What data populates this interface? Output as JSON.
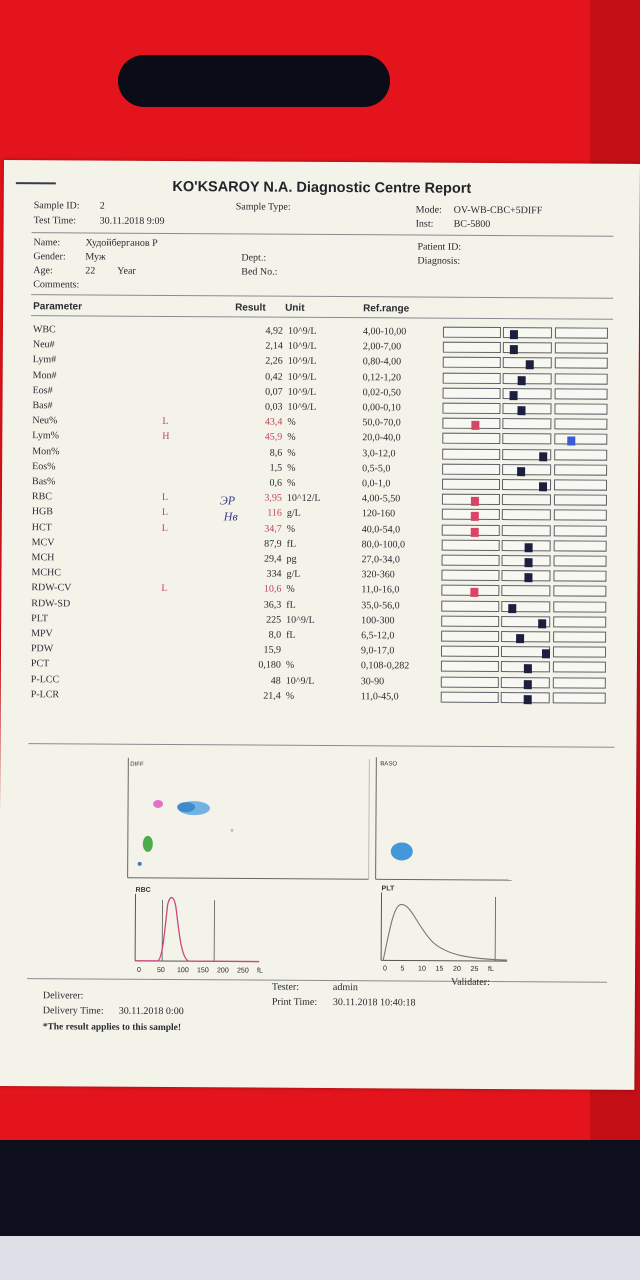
{
  "report": {
    "title": "KO'KSAROY N.A. Diagnostic Centre Report",
    "sample_id_label": "Sample ID:",
    "sample_id": "2",
    "test_time_label": "Test Time:",
    "test_time": "30.11.2018 9:09",
    "sample_type_label": "Sample Type:",
    "mode_label": "Mode:",
    "mode": "OV-WB-CBC+5DIFF",
    "inst_label": "Inst:",
    "inst": "BC-5800"
  },
  "patient": {
    "name_label": "Name:",
    "name": "Худойберганов Р",
    "gender_label": "Gender:",
    "gender": "Муж",
    "age_label": "Age:",
    "age": "22",
    "age_unit": "Year",
    "comments_label": "Comments:",
    "dept_label": "Dept.:",
    "bed_label": "Bed No.:",
    "patient_id_label": "Patient ID:",
    "diagnosis_label": "Diagnosis:"
  },
  "table": {
    "headers": {
      "parameter": "Parameter",
      "result": "Result",
      "unit": "Unit",
      "ref": "Ref.range"
    },
    "rows": [
      {
        "name": "WBC",
        "flag": "",
        "result": "4,92",
        "unit": "10^9/L",
        "ref": "4,00-10,00",
        "pos": "2a"
      },
      {
        "name": "Neu#",
        "flag": "",
        "result": "2,14",
        "unit": "10^9/L",
        "ref": "2,00-7,00",
        "pos": "2a"
      },
      {
        "name": "Lym#",
        "flag": "",
        "result": "2,26",
        "unit": "10^9/L",
        "ref": "0,80-4,00",
        "pos": "2b"
      },
      {
        "name": "Mon#",
        "flag": "",
        "result": "0,42",
        "unit": "10^9/L",
        "ref": "0,12-1,20",
        "pos": "2m"
      },
      {
        "name": "Eos#",
        "flag": "",
        "result": "0,07",
        "unit": "10^9/L",
        "ref": "0,02-0,50",
        "pos": "2a"
      },
      {
        "name": "Bas#",
        "flag": "",
        "result": "0,03",
        "unit": "10^9/L",
        "ref": "0,00-0,10",
        "pos": "2m"
      },
      {
        "name": "Neu%",
        "flag": "L",
        "result": "43,4",
        "unit": "%",
        "ref": "50,0-70,0",
        "pos": "1"
      },
      {
        "name": "Lym%",
        "flag": "H",
        "result": "45,9",
        "unit": "%",
        "ref": "20,0-40,0",
        "pos": "3"
      },
      {
        "name": "Mon%",
        "flag": "",
        "result": "8,6",
        "unit": "%",
        "ref": "3,0-12,0",
        "pos": "2c"
      },
      {
        "name": "Eos%",
        "flag": "",
        "result": "1,5",
        "unit": "%",
        "ref": "0,5-5,0",
        "pos": "2m"
      },
      {
        "name": "Bas%",
        "flag": "",
        "result": "0,6",
        "unit": "%",
        "ref": "0,0-1,0",
        "pos": "2c"
      },
      {
        "name": "RBC",
        "flag": "L",
        "result": "3,95",
        "unit": "10^12/L",
        "ref": "4,00-5,50",
        "pos": "1"
      },
      {
        "name": "HGB",
        "flag": "L",
        "result": "116",
        "unit": "g/L",
        "ref": "120-160",
        "pos": "1"
      },
      {
        "name": "HCT",
        "flag": "L",
        "result": "34,7",
        "unit": "%",
        "ref": "40,0-54,0",
        "pos": "1"
      },
      {
        "name": "MCV",
        "flag": "",
        "result": "87,9",
        "unit": "fL",
        "ref": "80,0-100,0",
        "pos": "2b"
      },
      {
        "name": "MCH",
        "flag": "",
        "result": "29,4",
        "unit": "pg",
        "ref": "27,0-34,0",
        "pos": "2b"
      },
      {
        "name": "MCHC",
        "flag": "",
        "result": "334",
        "unit": "g/L",
        "ref": "320-360",
        "pos": "2b"
      },
      {
        "name": "RDW-CV",
        "flag": "L",
        "result": "10,6",
        "unit": "%",
        "ref": "11,0-16,0",
        "pos": "1"
      },
      {
        "name": "RDW-SD",
        "flag": "",
        "result": "36,3",
        "unit": "fL",
        "ref": "35,0-56,0",
        "pos": "2a"
      },
      {
        "name": "PLT",
        "flag": "",
        "result": "225",
        "unit": "10^9/L",
        "ref": "100-300",
        "pos": "2c"
      },
      {
        "name": "MPV",
        "flag": "",
        "result": "8,0",
        "unit": "fL",
        "ref": "6,5-12,0",
        "pos": "2m"
      },
      {
        "name": "PDW",
        "flag": "",
        "result": "15,9",
        "unit": "",
        "ref": "9,0-17,0",
        "pos": "2d"
      },
      {
        "name": "PCT",
        "flag": "",
        "result": "0,180",
        "unit": "%",
        "ref": "0,108-0,282",
        "pos": "2b"
      },
      {
        "name": "P-LCC",
        "flag": "",
        "result": "48",
        "unit": "10^9/L",
        "ref": "30-90",
        "pos": "2b"
      },
      {
        "name": "P-LCR",
        "flag": "",
        "result": "21,4",
        "unit": "%",
        "ref": "11,0-45,0",
        "pos": "2b"
      }
    ]
  },
  "handwriting": {
    "rbc_note": "ЭР",
    "hgb_note": "Нв"
  },
  "plots": {
    "diff_label": "DIFF",
    "baso_label": "BASO",
    "rbc_label": "RBC",
    "plt_label": "PLT",
    "rbc_ticks": [
      "0",
      "50",
      "100",
      "150",
      "200",
      "250",
      "fL"
    ],
    "plt_ticks": [
      "0",
      "5",
      "10",
      "15",
      "20",
      "25",
      "fL"
    ]
  },
  "footer": {
    "deliverer_label": "Deliverer:",
    "delivery_time_label": "Delivery Time:",
    "delivery_time": "30.11.2018 0:00",
    "note": "*The result applies to this sample!",
    "tester_label": "Tester:",
    "tester": "admin",
    "validater_label": "Validater:",
    "print_time_label": "Print Time:",
    "print_time": "30.11.2018 10:40:18"
  },
  "colors": {
    "flag": "#c0455c",
    "marker": "#1d1f3f",
    "low_marker": "#d84566",
    "high_marker": "#3a5ad6"
  }
}
